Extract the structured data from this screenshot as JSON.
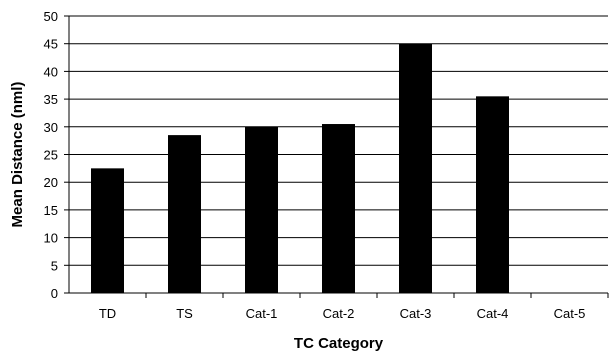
{
  "chart_data": {
    "type": "bar",
    "categories": [
      "TD",
      "TS",
      "Cat-1",
      "Cat-2",
      "Cat-3",
      "Cat-4",
      "Cat-5"
    ],
    "values": [
      22.5,
      28.5,
      30,
      30.5,
      45,
      35.5,
      0
    ],
    "xlabel": "TC Category",
    "ylabel": "Mean Distance (nml)",
    "ylim": [
      0,
      50
    ],
    "yticks": [
      0,
      5,
      10,
      15,
      20,
      25,
      30,
      35,
      40,
      45,
      50
    ],
    "grid": true,
    "bar_color": "#000000",
    "grid_color": "#000000"
  }
}
